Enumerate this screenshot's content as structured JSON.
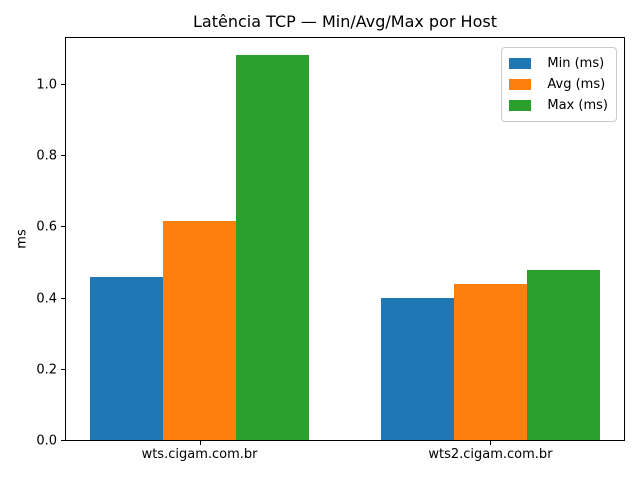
{
  "chart_data": {
    "type": "bar",
    "title": "Latência TCP — Min/Avg/Max por Host",
    "xlabel": "",
    "ylabel": "ms",
    "categories": [
      "wts.cigam.com.br",
      "wts2.cigam.com.br"
    ],
    "series": [
      {
        "name": "Min (ms)",
        "short": "min",
        "color": "#1f77b4",
        "values": [
          0.458,
          0.398
        ]
      },
      {
        "name": "Avg (ms)",
        "short": "avg",
        "color": "#ff7f0e",
        "values": [
          0.614,
          0.438
        ]
      },
      {
        "name": "Max (ms)",
        "short": "max",
        "color": "#2ca02c",
        "values": [
          1.082,
          0.478
        ]
      }
    ],
    "ylim": [
      0,
      1.135
    ],
    "yticks": [
      0.0,
      0.2,
      0.4,
      0.6,
      0.8,
      1.0
    ],
    "ytick_labels": [
      "0.0",
      "0.2",
      "0.4",
      "0.6",
      "0.8",
      "1.0"
    ],
    "xlim": [
      -0.4625,
      1.4625
    ],
    "bar_width": 0.25,
    "grid": false,
    "legend": {
      "position": "upper right",
      "entries": [
        "Min (ms)",
        "Avg (ms)",
        "Max (ms)"
      ]
    },
    "colors": {
      "background": "#ffffff",
      "spine": "#000000",
      "text": "#000000",
      "legend_border": "#cccccc"
    }
  }
}
